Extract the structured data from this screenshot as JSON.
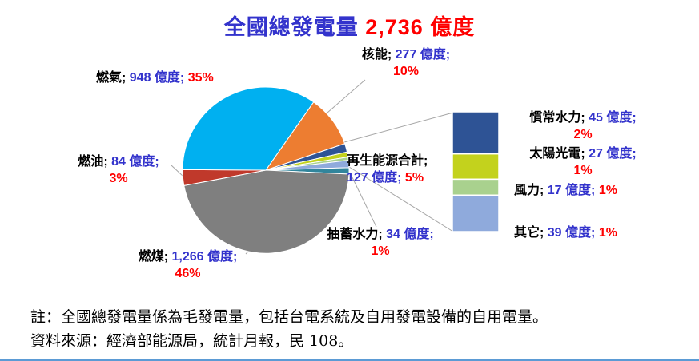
{
  "title": {
    "prefix": "全國總發電量 ",
    "value": "2,736 億度"
  },
  "chart_data": {
    "type": "pie",
    "title": "全國總發電量 2,736 億度",
    "total": 2736,
    "unit": "億度",
    "start_angle": 35,
    "legend_position": "none",
    "slices": [
      {
        "key": "nuclear",
        "name": "核能",
        "value": 277,
        "pct": "10%",
        "color": "#ED7D31"
      },
      {
        "key": "hydro",
        "name": "慣常水力",
        "value": 45,
        "pct": "2%",
        "color": "#2E5395"
      },
      {
        "key": "solar",
        "name": "太陽光電",
        "value": 27,
        "pct": "1%",
        "color": "#C3D21D"
      },
      {
        "key": "wind",
        "name": "風力",
        "value": 17,
        "pct": "1%",
        "color": "#A9D18E"
      },
      {
        "key": "other",
        "name": "其它",
        "value": 39,
        "pct": "1%",
        "color": "#8FAADC"
      },
      {
        "key": "pumped",
        "name": "抽蓄水力",
        "value": 34,
        "pct": "1%",
        "color": "#31859C"
      },
      {
        "key": "coal",
        "name": "燃煤",
        "value": 1266,
        "pct": "46%",
        "color": "#7F7F7F"
      },
      {
        "key": "oil",
        "name": "燃油",
        "value": 84,
        "pct": "3%",
        "color": "#C0392B"
      },
      {
        "key": "gas",
        "name": "燃氣",
        "value": 948,
        "pct": "35%",
        "color": "#00B0F0"
      }
    ],
    "bar_breakdown": {
      "group_name": "再生能源合計",
      "group_value": 127,
      "group_pct": "5%",
      "items": [
        {
          "key": "hydro",
          "name": "慣常水力",
          "value": 45,
          "pct": "2%",
          "color": "#2E5395"
        },
        {
          "key": "solar",
          "name": "太陽光電",
          "value": 27,
          "pct": "1%",
          "color": "#C3D21D"
        },
        {
          "key": "wind",
          "name": "風力",
          "value": 17,
          "pct": "1%",
          "color": "#A9D18E"
        },
        {
          "key": "other",
          "name": "其它",
          "value": 39,
          "pct": "1%",
          "color": "#8FAADC"
        }
      ]
    }
  },
  "labels": {
    "gas": {
      "name": "燃氣; ",
      "value": "948 億度; ",
      "pct": "35%"
    },
    "nuclear": {
      "name": "核能; ",
      "value": "277 億度;",
      "pct": "10%"
    },
    "renewable": {
      "name": "再生能源合計;",
      "value": "127 億度; ",
      "pct": "5%"
    },
    "pumped": {
      "name": "抽蓄水力; ",
      "value": "34 億度;",
      "pct": "1%"
    },
    "coal": {
      "name": "燃煤; ",
      "value": "1,266 億度;",
      "pct": "46%"
    },
    "oil": {
      "name": "燃油; ",
      "value": "84 億度;",
      "pct": "3%"
    },
    "hydro": {
      "name": "慣常水力; ",
      "value": "45 億度;",
      "pct": "2%"
    },
    "solar": {
      "name": "太陽光電; ",
      "value": "27 億度;",
      "pct": "1%"
    },
    "wind": {
      "name": "風力; ",
      "value": "17 億度; ",
      "pct": "1%"
    },
    "other": {
      "name": "其它; ",
      "value": "39 億度; ",
      "pct": "1%"
    }
  },
  "notes": {
    "line1": "註：全國總發電量係為毛發電量，包括台電系統及自用發電設備的自用電量。",
    "line2": "資料來源：經濟部能源局，統計月報，民 108。"
  },
  "palette": {
    "title_blue": "#3333CC",
    "value_blue": "#3333CC",
    "pct_red": "#FF0000",
    "leader_gray": "#A6A6A6",
    "bottom_border_blue": "#5B9BD5"
  }
}
